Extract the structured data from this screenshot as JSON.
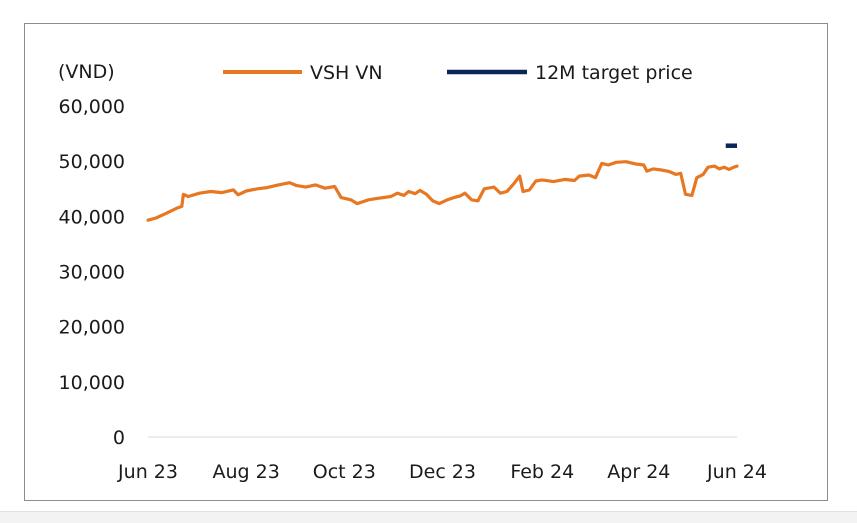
{
  "chart_data": {
    "type": "line",
    "unit_label": "(VND)",
    "ylim": [
      0,
      60000
    ],
    "yticks": [
      0,
      10000,
      20000,
      30000,
      40000,
      50000,
      60000
    ],
    "ytick_labels": [
      "0",
      "10,000",
      "20,000",
      "30,000",
      "40,000",
      "50,000",
      "60,000"
    ],
    "xlim": [
      "2023-06-01",
      "2024-06-01"
    ],
    "xticks": [
      "2023-06-01",
      "2023-08-01",
      "2023-10-01",
      "2023-12-01",
      "2024-02-01",
      "2024-04-01",
      "2024-06-01"
    ],
    "xtick_labels": [
      "Jun 23",
      "Aug 23",
      "Oct 23",
      "Dec 23",
      "Feb 24",
      "Apr 24",
      "Jun 24"
    ],
    "grid": false,
    "legend_position": "top",
    "series": [
      {
        "name": "VSH VN",
        "color": "#E87722",
        "type": "line",
        "points": [
          [
            "2023-06-01",
            39300
          ],
          [
            "2023-06-06",
            39700
          ],
          [
            "2023-06-12",
            40500
          ],
          [
            "2023-06-19",
            41500
          ],
          [
            "2023-06-22",
            41800
          ],
          [
            "2023-06-23",
            44000
          ],
          [
            "2023-06-26",
            43600
          ],
          [
            "2023-07-03",
            44200
          ],
          [
            "2023-07-10",
            44500
          ],
          [
            "2023-07-17",
            44300
          ],
          [
            "2023-07-24",
            44800
          ],
          [
            "2023-07-27",
            43900
          ],
          [
            "2023-08-01",
            44600
          ],
          [
            "2023-08-08",
            45000
          ],
          [
            "2023-08-14",
            45200
          ],
          [
            "2023-08-21",
            45700
          ],
          [
            "2023-08-28",
            46100
          ],
          [
            "2023-09-01",
            45600
          ],
          [
            "2023-09-07",
            45300
          ],
          [
            "2023-09-13",
            45700
          ],
          [
            "2023-09-19",
            45100
          ],
          [
            "2023-09-25",
            45400
          ],
          [
            "2023-09-29",
            43400
          ],
          [
            "2023-10-05",
            43000
          ],
          [
            "2023-10-09",
            42300
          ],
          [
            "2023-10-16",
            43000
          ],
          [
            "2023-10-23",
            43300
          ],
          [
            "2023-10-30",
            43600
          ],
          [
            "2023-11-03",
            44200
          ],
          [
            "2023-11-07",
            43800
          ],
          [
            "2023-11-10",
            44500
          ],
          [
            "2023-11-14",
            44100
          ],
          [
            "2023-11-17",
            44700
          ],
          [
            "2023-11-21",
            44000
          ],
          [
            "2023-11-25",
            42800
          ],
          [
            "2023-11-29",
            42300
          ],
          [
            "2023-12-04",
            43000
          ],
          [
            "2023-12-08",
            43400
          ],
          [
            "2023-12-12",
            43700
          ],
          [
            "2023-12-15",
            44200
          ],
          [
            "2023-12-19",
            43000
          ],
          [
            "2023-12-23",
            42800
          ],
          [
            "2023-12-27",
            45000
          ],
          [
            "2024-01-02",
            45300
          ],
          [
            "2024-01-06",
            44200
          ],
          [
            "2024-01-10",
            44500
          ],
          [
            "2024-01-14",
            45800
          ],
          [
            "2024-01-18",
            47300
          ],
          [
            "2024-01-20",
            44500
          ],
          [
            "2024-01-24",
            44800
          ],
          [
            "2024-01-28",
            46400
          ],
          [
            "2024-02-01",
            46600
          ],
          [
            "2024-02-08",
            46300
          ],
          [
            "2024-02-15",
            46700
          ],
          [
            "2024-02-21",
            46500
          ],
          [
            "2024-02-24",
            47300
          ],
          [
            "2024-03-01",
            47500
          ],
          [
            "2024-03-05",
            47000
          ],
          [
            "2024-03-09",
            49600
          ],
          [
            "2024-03-13",
            49300
          ],
          [
            "2024-03-18",
            49800
          ],
          [
            "2024-03-24",
            49900
          ],
          [
            "2024-03-30",
            49500
          ],
          [
            "2024-04-04",
            49300
          ],
          [
            "2024-04-06",
            48200
          ],
          [
            "2024-04-10",
            48600
          ],
          [
            "2024-04-15",
            48400
          ],
          [
            "2024-04-20",
            48100
          ],
          [
            "2024-04-24",
            47600
          ],
          [
            "2024-04-27",
            47800
          ],
          [
            "2024-04-30",
            44000
          ],
          [
            "2024-05-04",
            43800
          ],
          [
            "2024-05-07",
            47000
          ],
          [
            "2024-05-11",
            47600
          ],
          [
            "2024-05-14",
            48900
          ],
          [
            "2024-05-18",
            49100
          ],
          [
            "2024-05-21",
            48600
          ],
          [
            "2024-05-24",
            48900
          ],
          [
            "2024-05-27",
            48500
          ],
          [
            "2024-05-30",
            48900
          ],
          [
            "2024-06-01",
            49100
          ]
        ]
      },
      {
        "name": "12M target price",
        "color": "#0B2559",
        "type": "segment",
        "points": [
          [
            "2024-05-25",
            52800
          ],
          [
            "2024-06-01",
            52800
          ]
        ]
      }
    ]
  }
}
